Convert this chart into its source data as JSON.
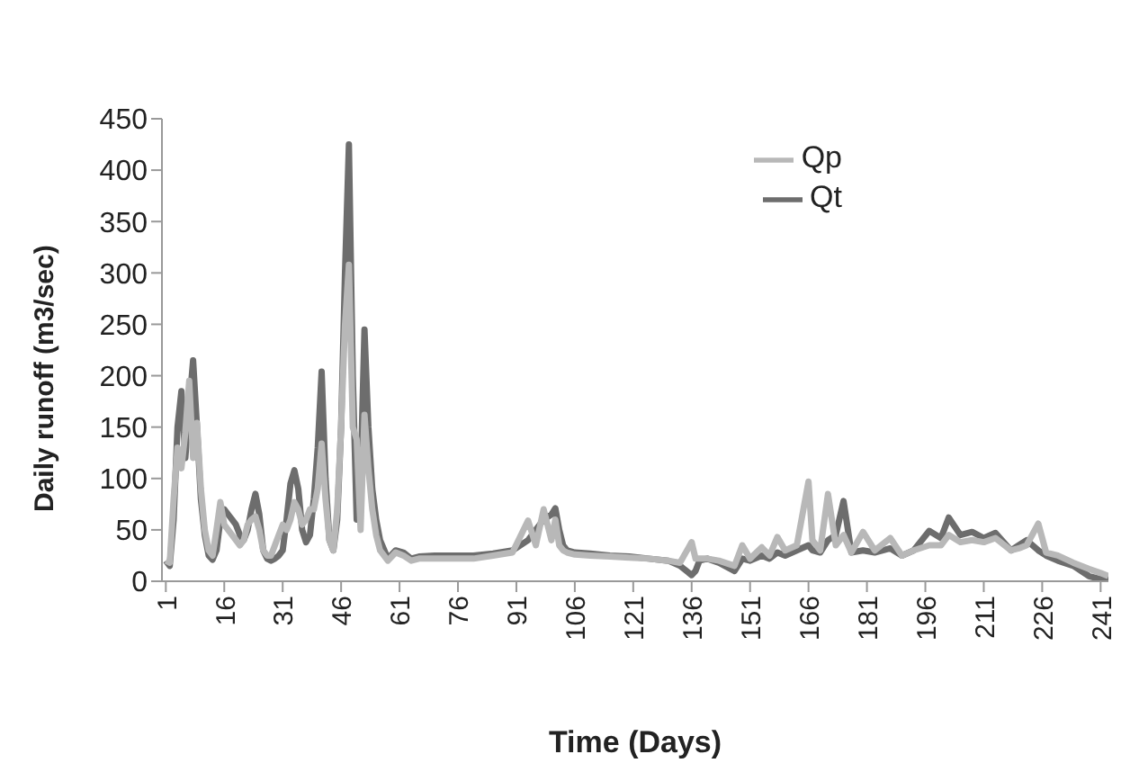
{
  "chart_data": {
    "type": "line",
    "xlabel": "Time (Days)",
    "ylabel": "Daily runoff (m3/sec)",
    "x": [
      1,
      2,
      3,
      4,
      5,
      6,
      7,
      8,
      9,
      10,
      11,
      12,
      13,
      14,
      15,
      16,
      17,
      18,
      19,
      20,
      21,
      22,
      23,
      24,
      25,
      26,
      27,
      28,
      29,
      30,
      31,
      32,
      33,
      34,
      35,
      36,
      37,
      38,
      39,
      40,
      41,
      42,
      43,
      44,
      45,
      46,
      47,
      48,
      49,
      50,
      51,
      52,
      53,
      54,
      55,
      56,
      58,
      60,
      62,
      64,
      66,
      70,
      75,
      80,
      85,
      90,
      94,
      96,
      98,
      100,
      101,
      102,
      103,
      104,
      106,
      110,
      115,
      120,
      125,
      130,
      133,
      136,
      137,
      138,
      140,
      143,
      147,
      149,
      151,
      154,
      156,
      158,
      160,
      163,
      166,
      167,
      169,
      171,
      173,
      175,
      177,
      180,
      183,
      187,
      190,
      193,
      197,
      200,
      202,
      205,
      208,
      211,
      214,
      218,
      220,
      222,
      225,
      227,
      230,
      234,
      238,
      241,
      243
    ],
    "series": [
      {
        "name": "Qt",
        "color": "#6d6d6d",
        "values": [
          20,
          15,
          60,
          150,
          185,
          120,
          170,
          215,
          150,
          80,
          45,
          25,
          21,
          30,
          60,
          70,
          65,
          60,
          55,
          45,
          40,
          50,
          70,
          85,
          65,
          30,
          22,
          20,
          22,
          25,
          30,
          60,
          95,
          108,
          90,
          50,
          38,
          45,
          80,
          130,
          204,
          100,
          40,
          30,
          60,
          150,
          300,
          425,
          200,
          60,
          100,
          245,
          150,
          90,
          60,
          40,
          22,
          30,
          28,
          22,
          24,
          25,
          25,
          25,
          27,
          30,
          40,
          50,
          60,
          65,
          71,
          50,
          35,
          30,
          28,
          27,
          25,
          24,
          22,
          20,
          15,
          6,
          10,
          20,
          22,
          18,
          10,
          22,
          20,
          25,
          22,
          28,
          25,
          30,
          35,
          30,
          28,
          40,
          45,
          78,
          28,
          30,
          28,
          32,
          25,
          30,
          49,
          42,
          62,
          45,
          48,
          42,
          47,
          30,
          35,
          40,
          30,
          25,
          20,
          15,
          5,
          2,
          2
        ]
      },
      {
        "name": "Qp",
        "color": "#b8b8b8",
        "values": [
          20,
          18,
          80,
          130,
          110,
          145,
          195,
          120,
          154,
          90,
          50,
          30,
          25,
          50,
          77,
          55,
          50,
          45,
          40,
          35,
          40,
          55,
          60,
          63,
          50,
          30,
          25,
          25,
          35,
          45,
          55,
          50,
          60,
          77,
          70,
          55,
          60,
          70,
          70,
          90,
          134,
          80,
          40,
          30,
          70,
          150,
          250,
          308,
          150,
          138,
          50,
          162,
          110,
          70,
          45,
          30,
          20,
          28,
          25,
          20,
          22,
          22,
          22,
          22,
          25,
          28,
          59,
          35,
          70,
          40,
          60,
          35,
          30,
          28,
          26,
          25,
          24,
          23,
          22,
          20,
          18,
          38,
          22,
          22,
          22,
          20,
          15,
          35,
          22,
          33,
          25,
          43,
          30,
          35,
          97,
          40,
          30,
          85,
          35,
          45,
          28,
          48,
          30,
          42,
          25,
          30,
          35,
          35,
          45,
          38,
          40,
          38,
          42,
          30,
          32,
          35,
          56,
          28,
          25,
          18,
          12,
          8,
          5
        ]
      }
    ],
    "xlim": [
      0,
      243
    ],
    "xticks": [
      1,
      16,
      31,
      46,
      61,
      76,
      91,
      106,
      121,
      136,
      151,
      166,
      181,
      196,
      211,
      226,
      241
    ],
    "ylim": [
      0,
      450
    ],
    "yticks": [
      0,
      50,
      100,
      150,
      200,
      250,
      300,
      350,
      400,
      450
    ],
    "grid": false,
    "legend": "top right",
    "marker": "none",
    "line_style": "solid"
  }
}
